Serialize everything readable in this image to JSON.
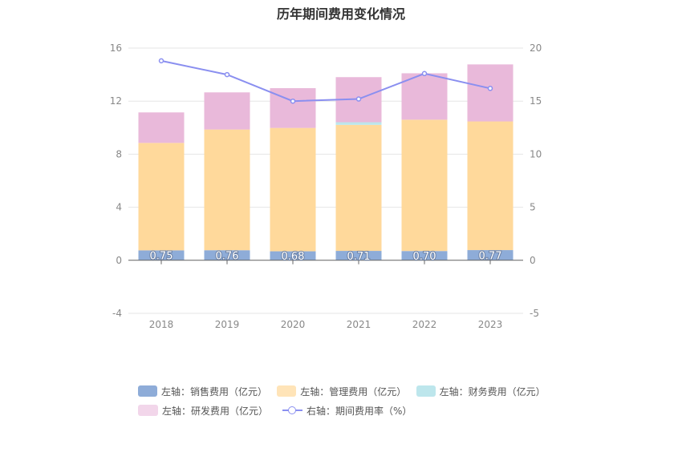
{
  "chart_data": {
    "type": "bar",
    "title": "历年期间费用变化情况",
    "categories": [
      "2018",
      "2019",
      "2020",
      "2021",
      "2022",
      "2023"
    ],
    "series": [
      {
        "name": "左轴：销售费用（亿元）",
        "axis": "left",
        "stack": "cost",
        "color": "#8eacd8",
        "values": [
          0.75,
          0.76,
          0.68,
          0.71,
          0.7,
          0.77
        ],
        "labels": [
          "0.75",
          "0.76",
          "0.68",
          "0.71",
          "0.70",
          "0.77"
        ]
      },
      {
        "name": "左轴：管理费用（亿元）",
        "axis": "left",
        "stack": "cost",
        "color": "#ffd99b",
        "values": [
          8.1,
          9.1,
          9.3,
          9.5,
          9.9,
          9.7
        ]
      },
      {
        "name": "左轴：财务费用（亿元）",
        "axis": "left",
        "stack": "cost",
        "color": "#bde6ec",
        "values": [
          0.0,
          0.0,
          0.0,
          0.2,
          0.0,
          0.0
        ]
      },
      {
        "name": "左轴：研发费用（亿元）",
        "axis": "left",
        "stack": "cost",
        "color": "#e9b9da",
        "values": [
          2.3,
          2.8,
          3.0,
          3.4,
          3.5,
          4.3
        ]
      },
      {
        "name": "右轴：期间费用率（%）",
        "axis": "right",
        "type": "line",
        "color": "#8a8ff0",
        "values": [
          18.8,
          17.5,
          15.0,
          15.2,
          17.6,
          16.2
        ]
      }
    ],
    "y_left": {
      "ylim": [
        -4,
        16
      ],
      "ticks": [
        "-4",
        "0",
        "4",
        "8",
        "12",
        "16"
      ]
    },
    "y_right": {
      "ylim": [
        -5,
        20
      ],
      "ticks": [
        "-5",
        "0",
        "5",
        "10",
        "15",
        "20"
      ]
    },
    "grid": true,
    "legend_position": "bottom"
  }
}
